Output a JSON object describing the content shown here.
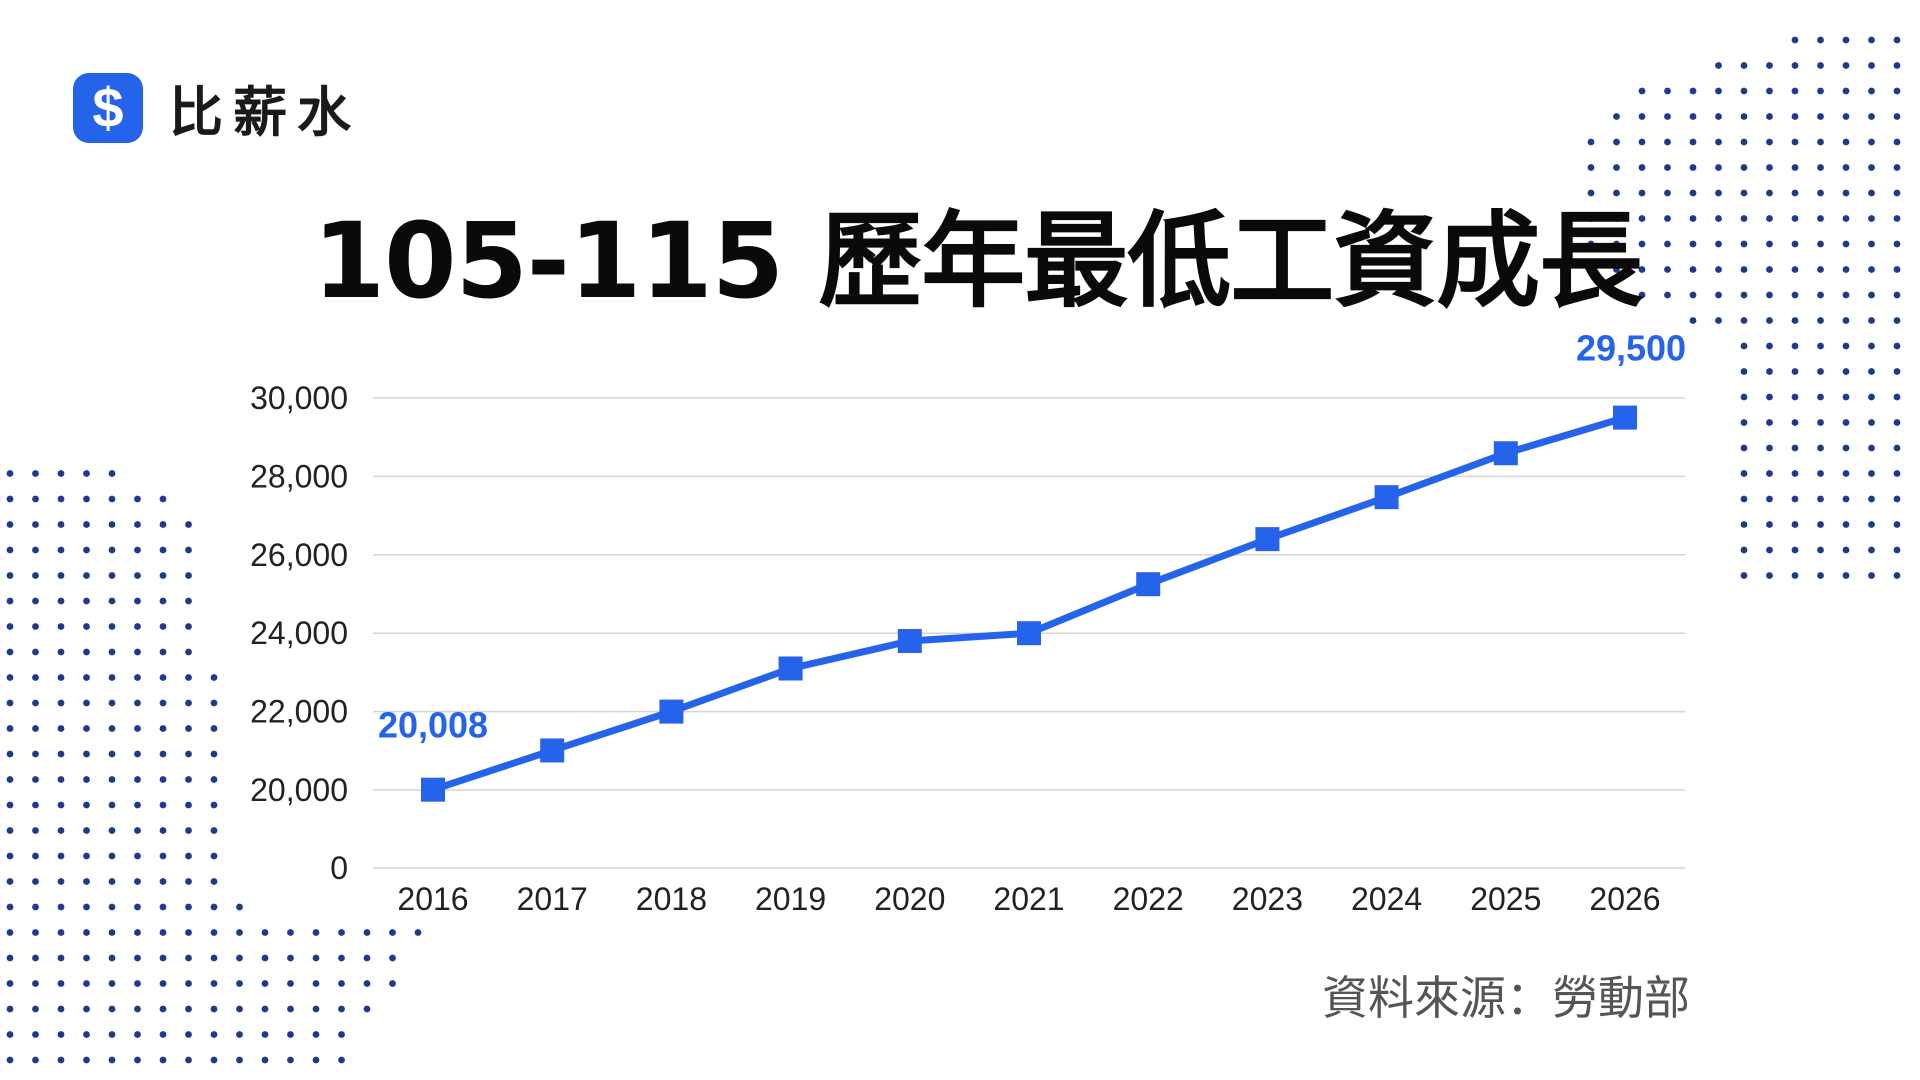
{
  "brand": {
    "name": "比薪水",
    "icon": "dollar-sign-icon",
    "color": "#2563eb"
  },
  "title": "105-115 歷年最低工資成長",
  "source": "資料來源：勞動部",
  "chart_data": {
    "type": "line",
    "title": "105-115 歷年最低工資成長",
    "xlabel": "",
    "ylabel": "",
    "categories": [
      "2016",
      "2017",
      "2018",
      "2019",
      "2020",
      "2021",
      "2022",
      "2023",
      "2024",
      "2025",
      "2026"
    ],
    "values": [
      20008,
      21009,
      22000,
      23100,
      23800,
      24000,
      25250,
      26400,
      27470,
      28590,
      29500
    ],
    "y_ticks": [
      "0",
      "20,000",
      "22,000",
      "24,000",
      "26,000",
      "28,000",
      "30,000"
    ],
    "y_tick_values": [
      0,
      20000,
      22000,
      24000,
      26000,
      28000,
      30000
    ],
    "ylim": [
      0,
      30000
    ],
    "y_axis_break": "0 then 20,000–30,000",
    "grid": true,
    "marker": "square",
    "line_color": "#2563eb",
    "data_labels": [
      {
        "category": "2016",
        "text": "20,008"
      },
      {
        "category": "2026",
        "text": "29,500"
      }
    ]
  },
  "decoration": {
    "dot_color": "#1e3a8a"
  }
}
